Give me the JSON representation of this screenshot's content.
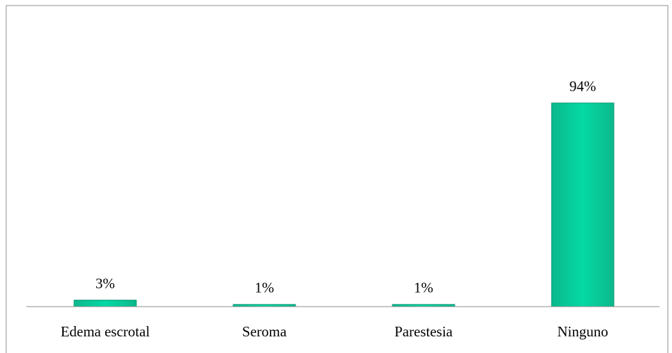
{
  "chart_data": {
    "type": "bar",
    "categories": [
      "Edema escrotal",
      "Seroma",
      "Parestesia",
      "Ninguno"
    ],
    "values": [
      3,
      1,
      1,
      94
    ],
    "value_labels": [
      "3%",
      "1%",
      "1%",
      "94%"
    ],
    "color": "#05d3a0",
    "ylim": [
      0,
      100
    ]
  }
}
